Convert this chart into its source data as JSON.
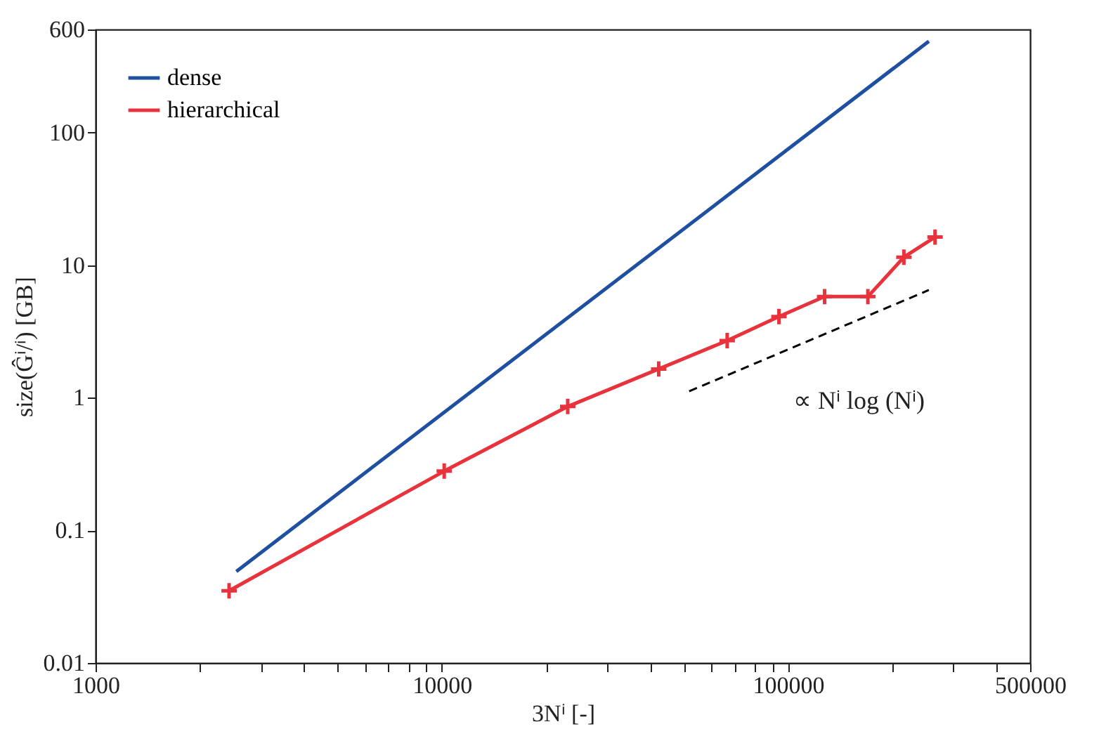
{
  "chart_data": {
    "type": "line",
    "xlabel": "3Nⁱ [-]",
    "ylabel": "size(Ĝⁱ/ⁱ) [GB]",
    "log": "xy",
    "grid": false,
    "legend": "top left",
    "xlim": [
      1000,
      500000
    ],
    "xticks": [
      1000,
      {
        "value": 2000,
        "label": null
      },
      {
        "value": 3000,
        "label": null
      },
      {
        "value": 4000,
        "label": null
      },
      {
        "value": 5000,
        "label": null
      },
      {
        "value": 6000,
        "label": null
      },
      {
        "value": 7000,
        "label": null
      },
      {
        "value": 8000,
        "label": null
      },
      {
        "value": 9000,
        "label": null
      },
      10000,
      {
        "value": 20000,
        "label": null
      },
      {
        "value": 30000,
        "label": null
      },
      {
        "value": 40000,
        "label": null
      },
      {
        "value": 50000,
        "label": null
      },
      {
        "value": 60000,
        "label": null
      },
      {
        "value": 70000,
        "label": null
      },
      {
        "value": 80000,
        "label": null
      },
      {
        "value": 90000,
        "label": null
      },
      100000,
      {
        "value": 200000,
        "label": null
      },
      {
        "value": 300000,
        "label": null
      },
      {
        "value": 400000,
        "label": null
      },
      500000
    ],
    "ylim": [
      0.01,
      600
    ],
    "yticks": [
      0.01,
      0.1,
      1,
      10,
      100,
      600
    ],
    "series": [
      {
        "name": "dense",
        "color": "#1f4fa0",
        "marker": "none",
        "x": [
          2550,
          255000
        ],
        "values": [
          0.049,
          489
        ]
      },
      {
        "name": "hierarchical",
        "color": "#e8323c",
        "marker": "cross",
        "x": [
          2430,
          10160,
          23100,
          42300,
          66700,
          94100,
          127500,
          170000,
          216000,
          265700
        ],
        "values": [
          0.035,
          0.28,
          0.86,
          1.65,
          2.7,
          4.1,
          5.8,
          5.8,
          11.5,
          16.3
        ]
      },
      {
        "type": "line",
        "color": "#000000",
        "line_style": "dashed",
        "marker": "none",
        "x": [
          51800,
          255000
        ],
        "values": [
          1.12,
          6.5
        ]
      }
    ],
    "annotations": [
      "∝ Nⁱ log (Nⁱ)"
    ]
  }
}
